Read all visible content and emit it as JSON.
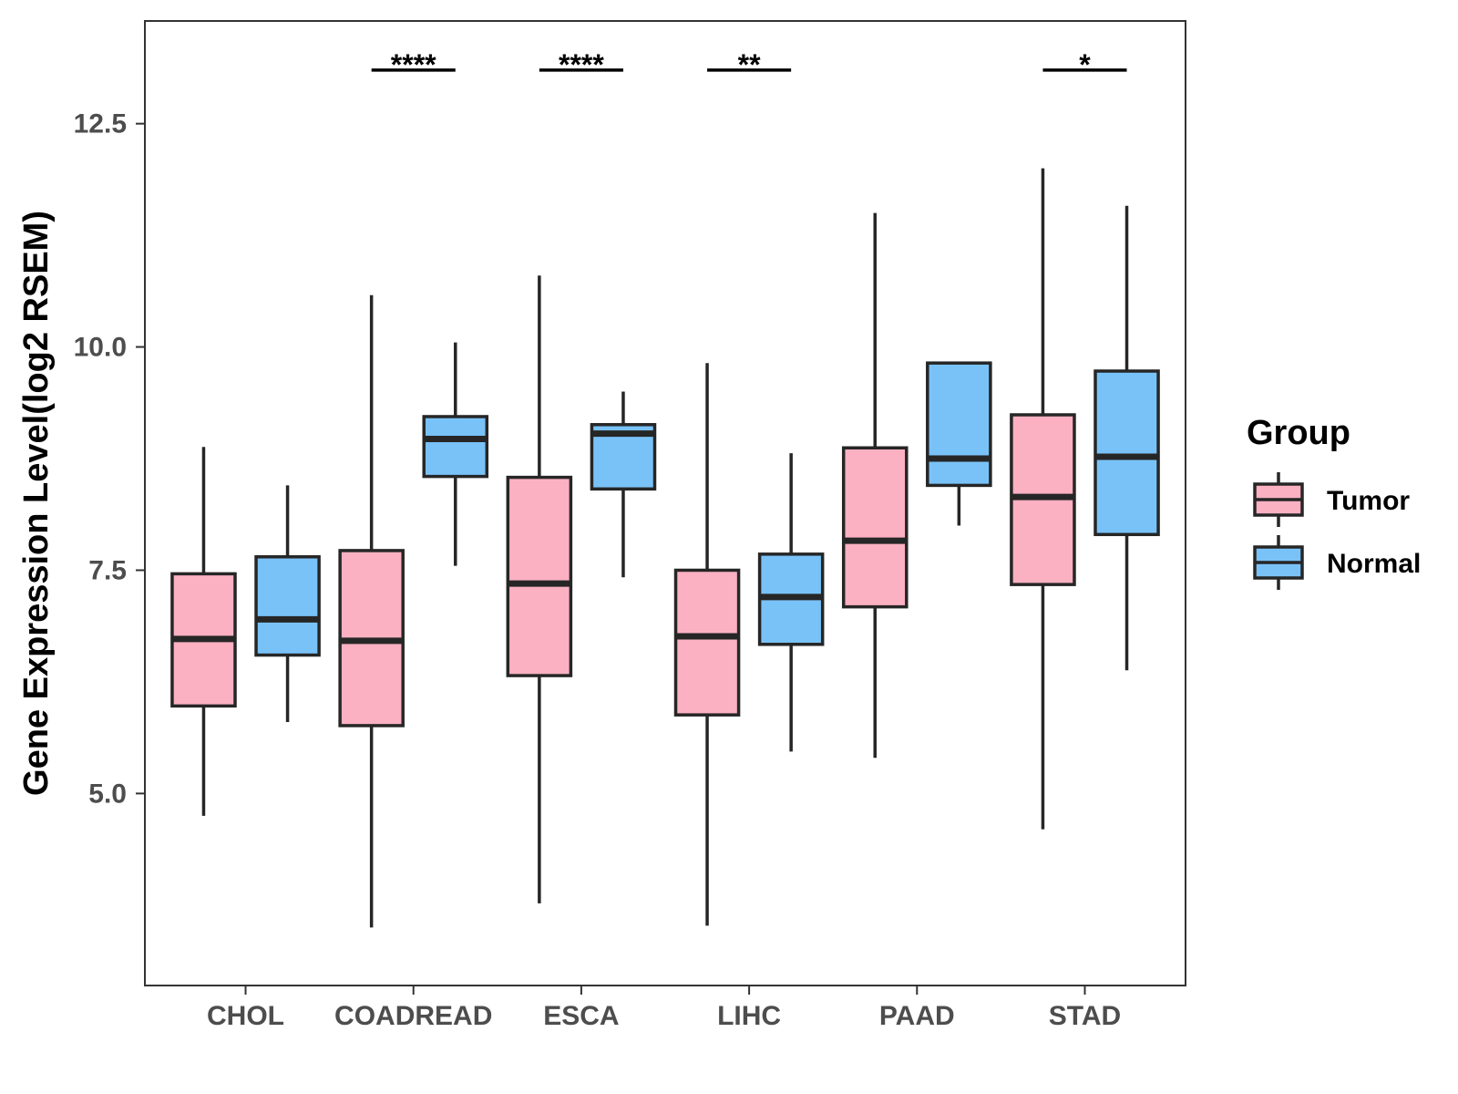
{
  "chart_data": {
    "type": "boxplot",
    "title": "",
    "xlabel": "",
    "ylabel": "Gene Expression Level(log2 RSEM)",
    "ylim": [
      2.85,
      13.65
    ],
    "yticks": [
      5.0,
      7.5,
      10.0,
      12.5
    ],
    "ytick_labels": [
      "5.0",
      "7.5",
      "10.0",
      "12.5"
    ],
    "categories": [
      "CHOL",
      "COADREAD",
      "ESCA",
      "LIHC",
      "PAAD",
      "STAD"
    ],
    "legend": {
      "title": "Group",
      "placement": "right",
      "entries": [
        {
          "name": "Tumor",
          "color": "#fbb1c2"
        },
        {
          "name": "Normal",
          "color": "#79c2f8"
        }
      ]
    },
    "series": [
      {
        "name": "Tumor",
        "color": "#fbb1c2",
        "boxes": [
          {
            "category": "CHOL",
            "whisker_low": 4.75,
            "q1": 5.98,
            "median": 6.73,
            "q3": 7.46,
            "whisker_high": 8.88
          },
          {
            "category": "COADREAD",
            "whisker_low": 3.5,
            "q1": 5.76,
            "median": 6.71,
            "q3": 7.72,
            "whisker_high": 10.58
          },
          {
            "category": "ESCA",
            "whisker_low": 3.77,
            "q1": 6.32,
            "median": 7.35,
            "q3": 8.54,
            "whisker_high": 10.8
          },
          {
            "category": "LIHC",
            "whisker_low": 3.52,
            "q1": 5.88,
            "median": 6.76,
            "q3": 7.5,
            "whisker_high": 9.82
          },
          {
            "category": "PAAD",
            "whisker_low": 5.4,
            "q1": 7.09,
            "median": 7.83,
            "q3": 8.87,
            "whisker_high": 11.5
          },
          {
            "category": "STAD",
            "whisker_low": 4.6,
            "q1": 7.34,
            "median": 8.32,
            "q3": 9.24,
            "whisker_high": 12.0
          }
        ]
      },
      {
        "name": "Normal",
        "color": "#79c2f8",
        "boxes": [
          {
            "category": "CHOL",
            "whisker_low": 5.8,
            "q1": 6.55,
            "median": 6.95,
            "q3": 7.65,
            "whisker_high": 8.45
          },
          {
            "category": "COADREAD",
            "whisker_low": 7.55,
            "q1": 8.55,
            "median": 8.97,
            "q3": 9.22,
            "whisker_high": 10.05
          },
          {
            "category": "ESCA",
            "whisker_low": 7.42,
            "q1": 8.41,
            "median": 9.03,
            "q3": 9.13,
            "whisker_high": 9.5
          },
          {
            "category": "LIHC",
            "whisker_low": 5.47,
            "q1": 6.67,
            "median": 7.2,
            "q3": 7.68,
            "whisker_high": 8.81
          },
          {
            "category": "PAAD",
            "whisker_low": 8.0,
            "q1": 8.45,
            "median": 8.75,
            "q3": 9.82,
            "whisker_high": 9.82
          },
          {
            "category": "STAD",
            "whisker_low": 6.38,
            "q1": 7.9,
            "median": 8.77,
            "q3": 9.73,
            "whisker_high": 11.58
          }
        ]
      }
    ],
    "significance": [
      {
        "category": "COADREAD",
        "label": "****",
        "y": 13.1
      },
      {
        "category": "ESCA",
        "label": "****",
        "y": 13.1
      },
      {
        "category": "LIHC",
        "label": "**",
        "y": 13.1
      },
      {
        "category": "STAD",
        "label": "*",
        "y": 13.1
      }
    ],
    "colors": {
      "tumor": "#fbb1c2",
      "normal": "#79c2f8",
      "outline": "#262626",
      "axis": "#333333"
    }
  }
}
